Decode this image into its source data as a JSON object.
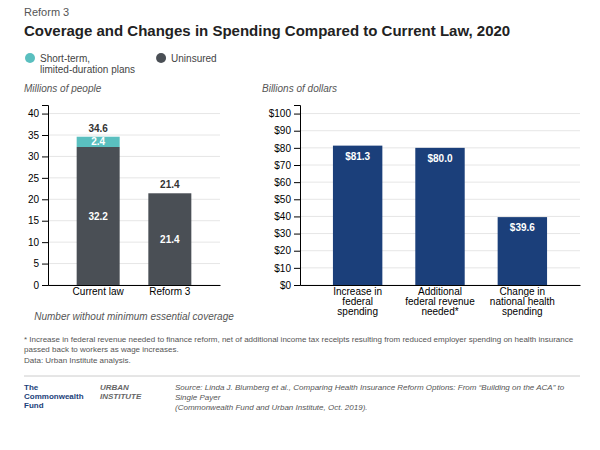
{
  "title": "Coverage and Changes in Spending Compared to Current Law, 2020",
  "subtitle": "Reform 3",
  "annotations": [
    "* Increase in federal revenue needed to finance reform, net of additional income tax receipts resulting from reduced employer spending on health insurance passed back to workers as wage increases.",
    "Data: Urban Institute analysis.",
    "Source: Linda J. Blumberg et al., Comparing Health Insurance Reform Options: From “Building on the ACA” to Single Payer\n(Commonwealth Fund and Urban Institute, Oct. 2019).",
    "The\nCommonwealth\nFund",
    "URBAN\nINSTITUTE"
  ],
  "chart_data": [
    {
      "type": "bar",
      "stacked": true,
      "data_labels": true,
      "grid": true,
      "legend": "top",
      "xlabel": "Number without minimum essential coverage",
      "ylabel": "Millions of people",
      "categories": [
        "Current law",
        "Reform 3"
      ],
      "series": [
        {
          "name": "Uninsured",
          "color": "#4a4f55",
          "values": [
            32.2,
            21.4
          ]
        },
        {
          "name": "Short-term,\nlimited-duration plans",
          "color": "#5abfbf",
          "values": [
            2.4,
            null
          ]
        }
      ],
      "totals": [
        34.6,
        21.4
      ],
      "ylim": [
        0,
        42
      ],
      "yticks": [
        0,
        5,
        10,
        15,
        20,
        25,
        30,
        35,
        40
      ]
    },
    {
      "type": "bar",
      "data_labels": true,
      "grid": true,
      "ylabel": "Billions of dollars",
      "categories": [
        "Increase in\nfederal\nspending",
        "Additional\nfederal revenue\nneeded*",
        "Change in\nnational health\nspending"
      ],
      "values": [
        81.3,
        80.0,
        39.6
      ],
      "value_labels": [
        "$81.3",
        "$80.0",
        "$39.6"
      ],
      "color": "#1b3f7a",
      "ylim": [
        0,
        105
      ],
      "yticks": [
        {
          "value": 0,
          "label": "$0"
        },
        {
          "value": 10,
          "label": "$10"
        },
        {
          "value": 20,
          "label": "$20"
        },
        {
          "value": 30,
          "label": "$30"
        },
        {
          "value": 40,
          "label": "$40"
        },
        {
          "value": 50,
          "label": "$50"
        },
        {
          "value": 60,
          "label": "$60"
        },
        {
          "value": 70,
          "label": "$70"
        },
        {
          "value": 80,
          "label": "$80"
        },
        {
          "value": 90,
          "label": "$90"
        },
        {
          "value": 100,
          "label": "$100"
        }
      ]
    }
  ]
}
